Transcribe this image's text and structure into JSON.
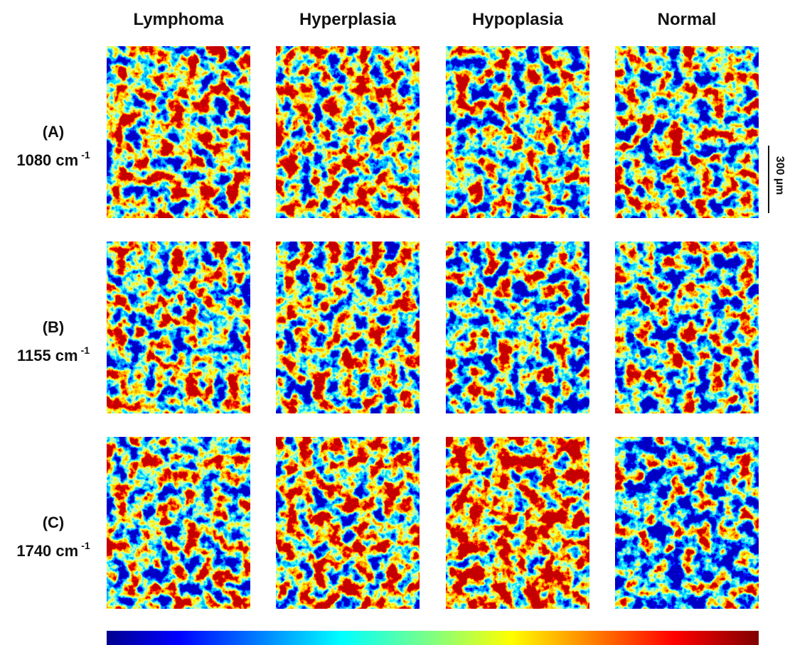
{
  "columns": [
    "Lymphoma",
    "Hyperplasia",
    "Hypoplasia",
    "Normal"
  ],
  "rows": [
    {
      "label": "(A)",
      "wavenumber": "1080 cm",
      "exponent": "-1"
    },
    {
      "label": "(B)",
      "wavenumber": "1155 cm",
      "exponent": "-1"
    },
    {
      "label": "(C)",
      "wavenumber": "1740 cm",
      "exponent": "-1"
    }
  ],
  "scale_bar": "300 µm"
}
